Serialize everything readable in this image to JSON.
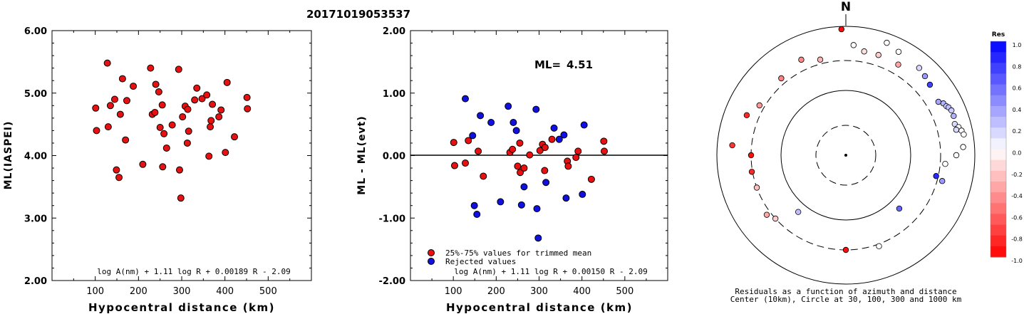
{
  "title": "20171019053537",
  "charts": {
    "left": {
      "type": "scatter",
      "ylabel": "ML(IASPEI)",
      "xlabel": "Hypocentral distance (km)",
      "xlim": [
        0,
        600
      ],
      "ylim": [
        2.0,
        6.0
      ],
      "xticks": [
        "100",
        "200",
        "300",
        "400",
        "500"
      ],
      "xtick_values": [
        100,
        200,
        300,
        400,
        500
      ],
      "yticks": [
        "2.00",
        "3.00",
        "4.00",
        "5.00",
        "6.00"
      ],
      "ytick_values": [
        2,
        3,
        4,
        5,
        6
      ],
      "formula": "log A(nm) + 1.11 log R + 0.00189 R - 2.09",
      "marker_color": "#e81010",
      "points": [
        [
          101,
          4.76
        ],
        [
          103,
          4.4
        ],
        [
          128,
          5.48
        ],
        [
          130,
          4.46
        ],
        [
          135,
          4.8
        ],
        [
          145,
          4.9
        ],
        [
          149,
          3.77
        ],
        [
          155,
          3.65
        ],
        [
          158,
          4.66
        ],
        [
          163,
          5.23
        ],
        [
          170,
          4.25
        ],
        [
          173,
          4.88
        ],
        [
          188,
          5.11
        ],
        [
          210,
          3.86
        ],
        [
          228,
          5.4
        ],
        [
          232,
          4.66
        ],
        [
          238,
          4.69
        ],
        [
          240,
          5.14
        ],
        [
          247,
          5.02
        ],
        [
          250,
          4.45
        ],
        [
          255,
          4.81
        ],
        [
          256,
          3.82
        ],
        [
          259,
          4.35
        ],
        [
          265,
          4.12
        ],
        [
          278,
          4.49
        ],
        [
          293,
          5.38
        ],
        [
          295,
          3.77
        ],
        [
          298,
          3.32
        ],
        [
          302,
          4.62
        ],
        [
          308,
          4.79
        ],
        [
          313,
          4.2
        ],
        [
          314,
          4.74
        ],
        [
          316,
          4.39
        ],
        [
          330,
          4.89
        ],
        [
          335,
          5.08
        ],
        [
          347,
          4.91
        ],
        [
          358,
          4.97
        ],
        [
          363,
          3.99
        ],
        [
          366,
          4.46
        ],
        [
          368,
          4.56
        ],
        [
          371,
          4.82
        ],
        [
          386,
          4.62
        ],
        [
          391,
          4.73
        ],
        [
          401,
          4.05
        ],
        [
          405,
          5.17
        ],
        [
          422,
          4.3
        ],
        [
          451,
          4.93
        ],
        [
          452,
          4.75
        ]
      ]
    },
    "middle": {
      "type": "scatter",
      "ylabel": "ML - ML(evt)",
      "xlabel": "Hypocentral distance (km)",
      "xlim": [
        0,
        600
      ],
      "ylim": [
        -2.0,
        2.0
      ],
      "xticks": [
        "100",
        "200",
        "300",
        "400",
        "500"
      ],
      "xtick_values": [
        100,
        200,
        300,
        400,
        500
      ],
      "yticks": [
        "-2.00",
        "-1.00",
        "0.00",
        "1.00",
        "2.00"
      ],
      "ytick_values": [
        -2,
        -1,
        0,
        1,
        2
      ],
      "ml_label": "ML=",
      "ml_value": "4.51",
      "legend": [
        "25%-75% values for trimmed mean",
        "Rejected values"
      ],
      "formula": "log A(nm) + 1.11 log R + 0.00150 R - 2.09",
      "colors": {
        "trimmed": "#e81010",
        "rejected": "#1010e0"
      },
      "points_trimmed": [
        [
          101,
          0.21
        ],
        [
          103,
          -0.16
        ],
        [
          128,
          -0.12
        ],
        [
          135,
          0.24
        ],
        [
          158,
          0.07
        ],
        [
          170,
          -0.33
        ],
        [
          232,
          0.05
        ],
        [
          238,
          0.1
        ],
        [
          250,
          -0.17
        ],
        [
          255,
          0.2
        ],
        [
          256,
          -0.27
        ],
        [
          265,
          -0.2
        ],
        [
          278,
          0.01
        ],
        [
          302,
          0.08
        ],
        [
          308,
          0.18
        ],
        [
          313,
          -0.24
        ],
        [
          314,
          0.13
        ],
        [
          330,
          0.26
        ],
        [
          366,
          -0.09
        ],
        [
          368,
          -0.17
        ],
        [
          386,
          -0.03
        ],
        [
          391,
          0.07
        ],
        [
          422,
          -0.38
        ],
        [
          451,
          0.23
        ],
        [
          452,
          0.07
        ]
      ],
      "points_rejected": [
        [
          128,
          0.91
        ],
        [
          145,
          0.32
        ],
        [
          149,
          -0.8
        ],
        [
          155,
          -0.94
        ],
        [
          163,
          0.64
        ],
        [
          188,
          0.53
        ],
        [
          210,
          -0.74
        ],
        [
          228,
          0.79
        ],
        [
          240,
          0.53
        ],
        [
          247,
          0.4
        ],
        [
          259,
          -0.79
        ],
        [
          265,
          -0.5
        ],
        [
          293,
          0.74
        ],
        [
          295,
          -0.85
        ],
        [
          298,
          -1.32
        ],
        [
          316,
          -0.43
        ],
        [
          335,
          0.44
        ],
        [
          347,
          0.26
        ],
        [
          358,
          0.33
        ],
        [
          363,
          -0.68
        ],
        [
          401,
          -0.62
        ],
        [
          405,
          0.49
        ]
      ]
    },
    "right": {
      "type": "polar",
      "north_label": "N",
      "caption_line1": "Residuals as a function of azimuth and distance",
      "caption_line2": "Center (10km), Circle at 30, 100, 300 and 1000 km",
      "colorbar_title": "Res",
      "colorbar_labels": [
        "1.0",
        "0.8",
        "0.6",
        "0.4",
        "0.2",
        "0.0",
        "-0.2",
        "-0.4",
        "-0.6",
        "-0.8",
        "-1.0"
      ],
      "colorbar_values": [
        1.0,
        0.8,
        0.6,
        0.4,
        0.2,
        0.0,
        -0.2,
        -0.4,
        -0.6,
        -0.8,
        -1.0
      ],
      "stations": [
        [
          -2,
          177,
          -0.95
        ],
        [
          4,
          155,
          0.02
        ],
        [
          10,
          148,
          -0.12
        ],
        [
          18,
          148,
          -0.2
        ],
        [
          30,
          147,
          -0.35
        ],
        [
          20,
          168,
          0.0
        ],
        [
          27,
          163,
          0.0
        ],
        [
          40,
          160,
          0.15
        ],
        [
          45,
          157,
          0.4
        ],
        [
          50,
          154,
          0.75
        ],
        [
          60,
          150,
          0.35
        ],
        [
          62,
          155,
          0.3
        ],
        [
          64,
          157,
          0.2
        ],
        [
          65,
          159,
          0.25
        ],
        [
          67,
          161,
          0.2
        ],
        [
          70,
          161,
          0.3
        ],
        [
          74,
          159,
          0.15
        ],
        [
          76,
          163,
          0.0
        ],
        [
          77,
          159,
          0.15
        ],
        [
          78,
          166,
          0.0
        ],
        [
          80,
          168,
          0.0
        ],
        [
          86,
          165,
          0.0
        ],
        [
          90,
          155,
          0.0
        ],
        [
          95,
          140,
          0.0
        ],
        [
          103,
          130,
          0.85
        ],
        [
          105,
          140,
          0.4
        ],
        [
          135,
          106,
          0.6
        ],
        [
          160,
          136,
          0.0
        ],
        [
          180,
          133,
          -0.95
        ],
        [
          220,
          104,
          0.25
        ],
        [
          228,
          133,
          -0.2
        ],
        [
          233,
          139,
          -0.35
        ],
        [
          250,
          133,
          -0.25
        ],
        [
          260,
          134,
          -0.85
        ],
        [
          270,
          133,
          -0.95
        ],
        [
          275,
          160,
          -0.8
        ],
        [
          292,
          150,
          -0.85
        ],
        [
          300,
          140,
          -0.4
        ],
        [
          320,
          141,
          -0.5
        ],
        [
          335,
          148,
          -0.45
        ],
        [
          345,
          139,
          -0.3
        ]
      ]
    }
  }
}
